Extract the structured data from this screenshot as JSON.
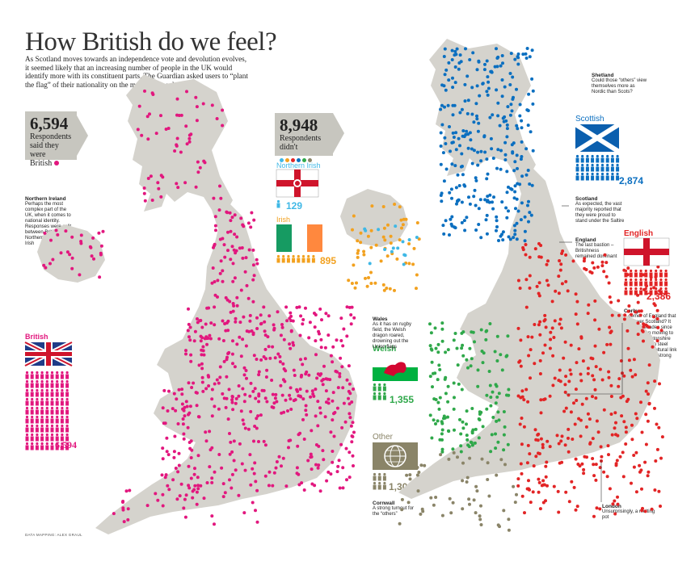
{
  "title": "How British do we feel?",
  "intro": "As Scotland moves towards an independence vote and devolution evolves, it seemed likely that an increasing number of people in the UK would identify more with its constituent parts. The Guardian asked users to “plant the flag” of their nationality on the map. The results were:",
  "british_box": {
    "count": "6,594",
    "label_line1": "Respondents",
    "label_line2": "said they were",
    "label_line3": "British"
  },
  "others_box": {
    "count": "8,948",
    "label_line1": "Respondents",
    "label_line2": "didn't"
  },
  "groups": {
    "british": {
      "label": "British",
      "count": "6,594",
      "color": "#e2177e"
    },
    "northern_irish": {
      "label": "Northern Irish",
      "count": "129",
      "color": "#3fb8e6"
    },
    "irish": {
      "label": "Irish",
      "count": "895",
      "color": "#f2a11f"
    },
    "scottish": {
      "label": "Scottish",
      "count": "2,874",
      "color": "#0b6fc0"
    },
    "english": {
      "label": "English",
      "count": "2,386",
      "color": "#e22425"
    },
    "welsh": {
      "label": "Welsh",
      "count": "1,355",
      "color": "#2fa84a"
    },
    "other": {
      "label": "Other",
      "count": "1,309",
      "color": "#8a8468"
    }
  },
  "notes": {
    "northern_ireland": {
      "title": "Northern Ireland",
      "text": "Perhaps the most complex part of the UK, when it comes to national identity. Responses were split between British, Northern Irish and Irish"
    },
    "shetland": {
      "title": "Shetland",
      "text": "Could those “others” view themselves more as Nordic than Scots?"
    },
    "scotland": {
      "title": "Scotland",
      "text": "As expected, the vast majority reported that they were proud to stand under the Saltire"
    },
    "england": {
      "title": "England",
      "text": "The last bastion – Britishness remained dominant"
    },
    "corby": {
      "title": "Corby",
      "text": "A corner of England that is forever Scotland? It may be decades since Scots began moving to the Northamptonshire town to work in steel mills, but the cultural link clearly remains strong"
    },
    "wales": {
      "title": "Wales",
      "text": "As it has on rugby field, the Welsh dragon roared, drowning out the Union flags"
    },
    "cornwall": {
      "title": "Cornwall",
      "text": "A strong turnout for the “others”"
    },
    "london": {
      "title": "London",
      "text": "Unsurprisingly, a melting pot"
    }
  },
  "credit": "DATA MAPPING: ALEX GRAUL",
  "map_fill": "#d5d3cd",
  "background": "#ffffff"
}
